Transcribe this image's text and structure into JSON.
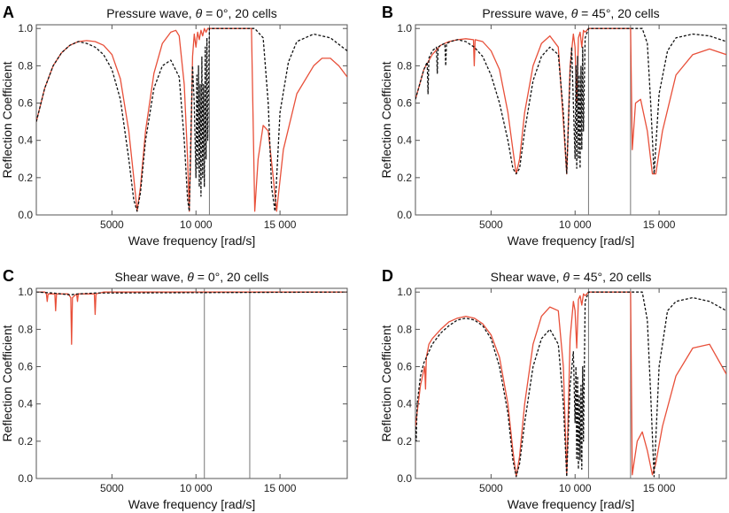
{
  "colors": {
    "red": "#e8503a",
    "black": "#111111",
    "vline": "#777777",
    "frame": "#555555"
  },
  "chart_data": [
    {
      "type": "line",
      "panel": "A",
      "title_prefix": "Pressure wave, ",
      "title_theta": "θ",
      "title_suffix": " = 0°, 20 cells",
      "xlabel": "Wave frequency [rad/s]",
      "ylabel": "Reflection Coefficient",
      "xlim": [
        500,
        19000
      ],
      "ylim": [
        0,
        1.02
      ],
      "xticks": [
        5000,
        10000,
        15000
      ],
      "xtick_labels": [
        "5000",
        "10 000",
        "15 000"
      ],
      "yticks": [
        0.0,
        0.2,
        0.4,
        0.6,
        0.8,
        1.0
      ],
      "ytick_labels": [
        "0.0",
        "0.2",
        "0.4",
        "0.6",
        "0.8",
        "1.0"
      ],
      "vlines": [
        10800
      ],
      "series": [
        {
          "name": "red-solid",
          "style": "solid",
          "x": [
            500,
            1000,
            1500,
            2000,
            2500,
            3000,
            3500,
            4000,
            4500,
            5000,
            5500,
            6000,
            6300,
            6500,
            6700,
            7000,
            7500,
            8000,
            8500,
            8800,
            9000,
            9300,
            9500,
            9600,
            9700,
            9800,
            9900,
            10000,
            10100,
            10200,
            10300,
            10400,
            10500,
            10600,
            10700,
            10800,
            11500,
            12500,
            13300,
            13500,
            13700,
            14000,
            14300,
            14600,
            14800,
            15200,
            16000,
            17000,
            17500,
            18000,
            18500,
            19000
          ],
          "y": [
            0.5,
            0.68,
            0.8,
            0.87,
            0.91,
            0.93,
            0.935,
            0.93,
            0.91,
            0.86,
            0.73,
            0.45,
            0.2,
            0.02,
            0.15,
            0.45,
            0.76,
            0.92,
            0.98,
            0.99,
            0.96,
            0.7,
            0.3,
            0.02,
            0.4,
            0.85,
            0.97,
            0.9,
            0.98,
            0.94,
            0.99,
            0.96,
            1.0,
            0.98,
            1.0,
            1.0,
            1.0,
            1.0,
            1.0,
            0.02,
            0.3,
            0.48,
            0.45,
            0.2,
            0.02,
            0.35,
            0.65,
            0.8,
            0.84,
            0.84,
            0.8,
            0.74
          ]
        },
        {
          "name": "black-dashed",
          "style": "dashed",
          "x": [
            500,
            1000,
            1500,
            2000,
            2500,
            3000,
            3500,
            4000,
            4500,
            5000,
            5500,
            6000,
            6300,
            6500,
            6700,
            7000,
            7500,
            8000,
            8500,
            9000,
            9300,
            9500,
            9600,
            9700,
            9800,
            9900,
            10000,
            10050,
            10100,
            10150,
            10200,
            10250,
            10300,
            10350,
            10400,
            10450,
            10500,
            10550,
            10600,
            10650,
            10700,
            10800,
            12000,
            13500,
            14000,
            14300,
            14500,
            14700,
            15000,
            15500,
            16000,
            17000,
            18000,
            19000
          ],
          "y": [
            0.5,
            0.68,
            0.8,
            0.87,
            0.91,
            0.93,
            0.92,
            0.9,
            0.86,
            0.78,
            0.62,
            0.3,
            0.08,
            0.02,
            0.12,
            0.4,
            0.68,
            0.8,
            0.83,
            0.74,
            0.4,
            0.08,
            0.02,
            0.45,
            0.8,
            0.6,
            0.2,
            0.75,
            0.25,
            0.8,
            0.15,
            0.7,
            0.1,
            0.85,
            0.2,
            0.7,
            0.15,
            0.9,
            0.3,
            0.95,
            0.4,
            1.0,
            1.0,
            1.0,
            0.95,
            0.6,
            0.15,
            0.02,
            0.55,
            0.82,
            0.93,
            0.97,
            0.95,
            0.88
          ]
        }
      ]
    },
    {
      "type": "line",
      "panel": "B",
      "title_prefix": "Pressure wave, ",
      "title_theta": "θ",
      "title_suffix": " = 45°, 20 cells",
      "xlabel": "Wave frequency [rad/s]",
      "ylabel": "Reflection Coefficient",
      "xlim": [
        500,
        19000
      ],
      "ylim": [
        0,
        1.02
      ],
      "xticks": [
        5000,
        10000,
        15000
      ],
      "xtick_labels": [
        "5000",
        "10 000",
        "15 000"
      ],
      "yticks": [
        0.0,
        0.2,
        0.4,
        0.6,
        0.8,
        1.0
      ],
      "ytick_labels": [
        "0.0",
        "0.2",
        "0.4",
        "0.6",
        "0.8",
        "1.0"
      ],
      "vlines": [
        10800,
        13300
      ],
      "series": [
        {
          "name": "red-solid",
          "style": "solid",
          "x": [
            500,
            1000,
            1500,
            2000,
            2500,
            3000,
            3500,
            3950,
            4000,
            4050,
            4500,
            5000,
            5500,
            6000,
            6300,
            6500,
            6700,
            7000,
            7500,
            8000,
            8500,
            9000,
            9300,
            9500,
            9700,
            9900,
            10000,
            10100,
            10200,
            10300,
            10400,
            10500,
            10600,
            10800,
            12000,
            13300,
            13400,
            13600,
            13900,
            14300,
            14600,
            14800,
            15200,
            16000,
            17000,
            18000,
            19000
          ],
          "y": [
            0.62,
            0.78,
            0.86,
            0.91,
            0.93,
            0.94,
            0.945,
            0.94,
            0.8,
            0.94,
            0.93,
            0.88,
            0.78,
            0.55,
            0.35,
            0.22,
            0.3,
            0.55,
            0.8,
            0.92,
            0.96,
            0.9,
            0.5,
            0.22,
            0.8,
            0.97,
            0.9,
            0.6,
            0.95,
            0.98,
            0.9,
            0.99,
            0.98,
            1.0,
            1.0,
            1.0,
            0.35,
            0.6,
            0.62,
            0.45,
            0.22,
            0.22,
            0.45,
            0.75,
            0.86,
            0.89,
            0.86
          ]
        },
        {
          "name": "black-dashed",
          "style": "dashed",
          "x": [
            500,
            1000,
            1200,
            1250,
            1300,
            1500,
            1750,
            1800,
            1850,
            2000,
            2250,
            2300,
            2350,
            2600,
            3000,
            3500,
            4000,
            4500,
            5000,
            5500,
            6000,
            6300,
            6500,
            6700,
            7000,
            7500,
            8000,
            8500,
            9000,
            9300,
            9500,
            9700,
            9800,
            9900,
            10000,
            10050,
            10100,
            10150,
            10200,
            10250,
            10300,
            10350,
            10400,
            10450,
            10500,
            10600,
            10800,
            12000,
            14000,
            14300,
            14500,
            14700,
            15000,
            15500,
            16000,
            17000,
            18000,
            19000
          ],
          "y": [
            0.62,
            0.78,
            0.82,
            0.65,
            0.84,
            0.88,
            0.9,
            0.76,
            0.9,
            0.91,
            0.92,
            0.8,
            0.92,
            0.93,
            0.94,
            0.93,
            0.9,
            0.85,
            0.75,
            0.6,
            0.4,
            0.25,
            0.22,
            0.25,
            0.45,
            0.72,
            0.85,
            0.9,
            0.86,
            0.55,
            0.22,
            0.75,
            0.9,
            0.6,
            0.3,
            0.8,
            0.25,
            0.85,
            0.3,
            0.75,
            0.25,
            0.8,
            0.35,
            0.9,
            0.45,
            0.95,
            1.0,
            1.0,
            1.0,
            0.92,
            0.6,
            0.22,
            0.65,
            0.88,
            0.95,
            0.97,
            0.96,
            0.93
          ]
        }
      ]
    },
    {
      "type": "line",
      "panel": "C",
      "title_prefix": "Shear wave, ",
      "title_theta": "θ",
      "title_suffix": " = 0°, 20 cells",
      "xlabel": "Wave frequency [rad/s]",
      "ylabel": "Reflection Coefficient",
      "xlim": [
        500,
        19000
      ],
      "ylim": [
        0,
        1.02
      ],
      "xticks": [
        5000,
        10000,
        15000
      ],
      "xtick_labels": [
        "5000",
        "10 000",
        "15 000"
      ],
      "yticks": [
        0.0,
        0.2,
        0.4,
        0.6,
        0.8,
        1.0
      ],
      "ytick_labels": [
        "0.0",
        "0.2",
        "0.4",
        "0.6",
        "0.8",
        "1.0"
      ],
      "vlines": [
        10500,
        13200
      ],
      "series": [
        {
          "name": "red-solid",
          "style": "solid",
          "x": [
            500,
            1000,
            1100,
            1150,
            1200,
            1600,
            1650,
            1700,
            2400,
            2550,
            2600,
            2650,
            2900,
            2950,
            3000,
            3950,
            4000,
            4050,
            4500,
            19000
          ],
          "y": [
            1.0,
            1.0,
            0.99,
            0.95,
            0.99,
            0.99,
            0.9,
            0.99,
            0.99,
            0.97,
            0.72,
            0.97,
            0.99,
            0.95,
            0.99,
            0.99,
            0.88,
            0.99,
            1.0,
            1.0
          ]
        },
        {
          "name": "black-dashed",
          "style": "dashed",
          "x": [
            500,
            1500,
            2000,
            2500,
            3000,
            4000,
            19000
          ],
          "y": [
            1.0,
            0.995,
            0.99,
            0.985,
            0.99,
            0.995,
            1.0
          ]
        }
      ]
    },
    {
      "type": "line",
      "panel": "D",
      "title_prefix": "Shear wave, ",
      "title_theta": "θ",
      "title_suffix": " = 45°, 20 cells",
      "xlabel": "Wave frequency [rad/s]",
      "ylabel": "Reflection Coefficient",
      "xlim": [
        500,
        19000
      ],
      "ylim": [
        0,
        1.02
      ],
      "xticks": [
        5000,
        10000,
        15000
      ],
      "xtick_labels": [
        "5000",
        "10 000",
        "15 000"
      ],
      "yticks": [
        0.0,
        0.2,
        0.4,
        0.6,
        0.8,
        1.0
      ],
      "ytick_labels": [
        "0.0",
        "0.2",
        "0.4",
        "0.6",
        "0.8",
        "1.0"
      ],
      "vlines": [
        10800,
        13300
      ],
      "series": [
        {
          "name": "red-solid",
          "style": "solid",
          "x": [
            500,
            800,
            1050,
            1100,
            1150,
            1300,
            1500,
            2000,
            2500,
            3000,
            3500,
            4000,
            4500,
            5000,
            5500,
            6000,
            6300,
            6500,
            6700,
            7000,
            7500,
            8000,
            8500,
            9000,
            9300,
            9500,
            9700,
            9900,
            10000,
            10100,
            10200,
            10300,
            10400,
            10500,
            10600,
            10800,
            12000,
            13300,
            13400,
            13700,
            14000,
            14300,
            14600,
            14800,
            15200,
            16000,
            17000,
            18000,
            19000
          ],
          "y": [
            0.28,
            0.5,
            0.6,
            0.48,
            0.65,
            0.72,
            0.75,
            0.8,
            0.84,
            0.86,
            0.87,
            0.86,
            0.83,
            0.77,
            0.65,
            0.4,
            0.15,
            0.01,
            0.12,
            0.4,
            0.72,
            0.87,
            0.92,
            0.9,
            0.6,
            0.02,
            0.75,
            0.95,
            0.9,
            0.7,
            0.96,
            0.98,
            0.93,
            0.99,
            0.98,
            1.0,
            1.0,
            1.0,
            0.02,
            0.2,
            0.25,
            0.15,
            0.02,
            0.08,
            0.28,
            0.55,
            0.7,
            0.72,
            0.56
          ]
        },
        {
          "name": "black-dashed",
          "style": "dashed",
          "x": [
            500,
            550,
            600,
            800,
            1000,
            1500,
            2000,
            2500,
            3000,
            3500,
            4000,
            4500,
            5000,
            5500,
            6000,
            6300,
            6500,
            6700,
            7000,
            7500,
            8000,
            8500,
            9000,
            9300,
            9500,
            9700,
            9900,
            10000,
            10050,
            10100,
            10150,
            10200,
            10250,
            10300,
            10350,
            10400,
            10450,
            10500,
            10600,
            10800,
            12000,
            14000,
            14300,
            14500,
            14700,
            15000,
            15500,
            16000,
            17000,
            18000,
            19000
          ],
          "y": [
            0.28,
            0.2,
            0.4,
            0.55,
            0.62,
            0.72,
            0.78,
            0.82,
            0.85,
            0.86,
            0.85,
            0.82,
            0.75,
            0.6,
            0.35,
            0.1,
            0.01,
            0.08,
            0.3,
            0.6,
            0.75,
            0.8,
            0.72,
            0.4,
            0.01,
            0.5,
            0.68,
            0.3,
            0.6,
            0.1,
            0.55,
            0.05,
            0.45,
            0.1,
            0.5,
            0.05,
            0.6,
            0.2,
            0.95,
            1.0,
            1.0,
            1.0,
            0.85,
            0.45,
            0.01,
            0.6,
            0.9,
            0.95,
            0.97,
            0.95,
            0.9
          ]
        }
      ]
    }
  ]
}
